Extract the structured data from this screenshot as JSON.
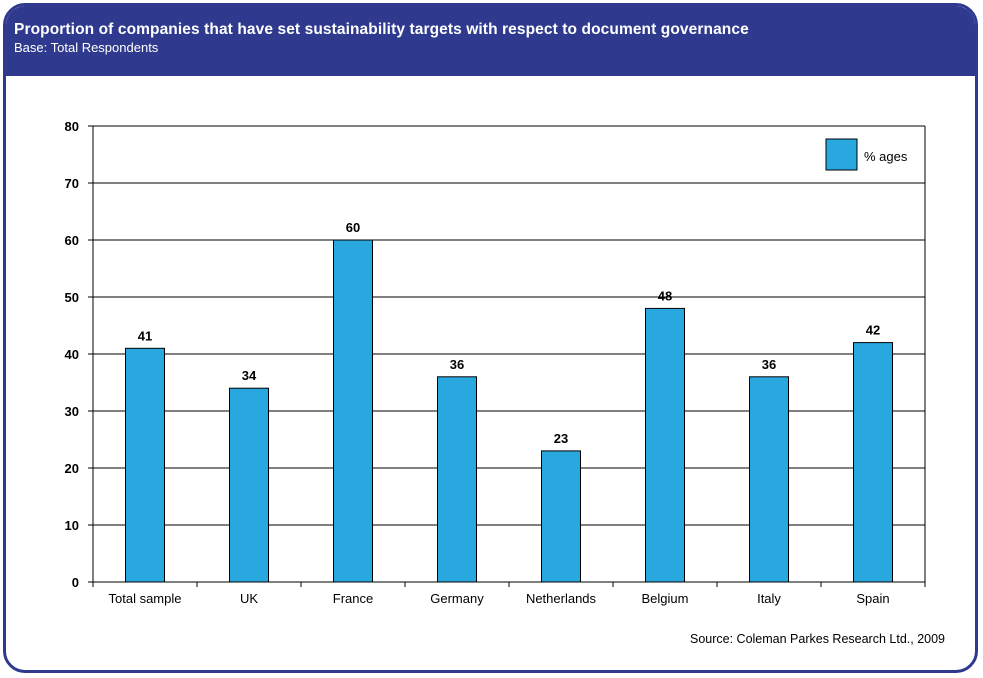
{
  "header": {
    "title": "Proportion of companies that have set sustainability targets with respect to document governance",
    "subtitle": "Base: Total Respondents"
  },
  "source": "Source: Coleman Parkes Research Ltd., 2009",
  "colors": {
    "frame": "#2f3a8f",
    "bar": "#29a8e0",
    "bar_stroke": "#000000",
    "gridline": "#000000"
  },
  "chart_data": {
    "type": "bar",
    "categories": [
      "Total sample",
      "UK",
      "France",
      "Germany",
      "Netherlands",
      "Belgium",
      "Italy",
      "Spain"
    ],
    "series": [
      {
        "name": "% ages",
        "values": [
          41,
          34,
          60,
          36,
          23,
          48,
          36,
          42
        ]
      }
    ],
    "data_labels": [
      "41",
      "34",
      "60",
      "36",
      "23",
      "48",
      "36",
      "42"
    ],
    "ylim": [
      0,
      80
    ],
    "yticks": [
      0,
      10,
      20,
      30,
      40,
      50,
      60,
      70,
      80
    ],
    "grid": true,
    "legend": {
      "position": "top-right",
      "label": "% ages"
    }
  }
}
